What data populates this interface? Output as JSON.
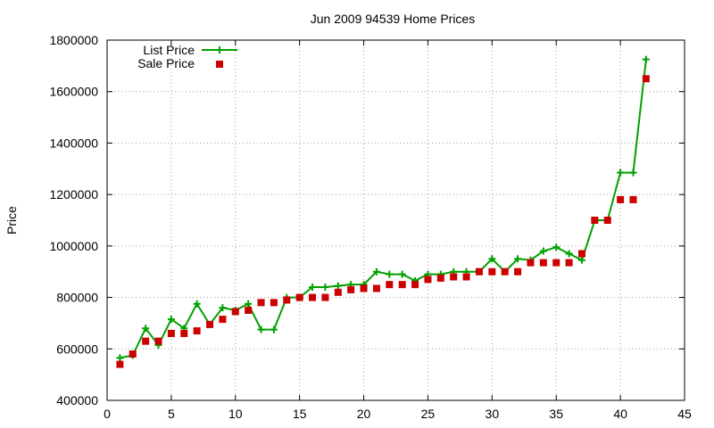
{
  "chart_data": {
    "type": "line",
    "title": "Jun 2009 94539 Home Prices",
    "xlabel": "",
    "ylabel": "Price",
    "xlim": [
      0,
      45
    ],
    "ylim": [
      400000,
      1800000
    ],
    "x_ticks": [
      0,
      5,
      10,
      15,
      20,
      25,
      30,
      35,
      40,
      45
    ],
    "y_ticks": [
      400000,
      600000,
      800000,
      1000000,
      1200000,
      1400000,
      1600000,
      1800000
    ],
    "grid": true,
    "legend_position": "top-left",
    "x": [
      1,
      2,
      3,
      4,
      5,
      6,
      7,
      8,
      9,
      10,
      11,
      12,
      13,
      14,
      15,
      16,
      17,
      18,
      19,
      20,
      21,
      22,
      23,
      24,
      25,
      26,
      27,
      28,
      29,
      30,
      31,
      32,
      33,
      34,
      35,
      36,
      37,
      38,
      39,
      40,
      41,
      42
    ],
    "series": [
      {
        "name": "List Price",
        "style": "line-with-plus",
        "color": "#00a000",
        "values": [
          565000,
          575000,
          680000,
          615000,
          715000,
          680000,
          775000,
          695000,
          760000,
          750000,
          775000,
          675000,
          675000,
          800000,
          800000,
          840000,
          840000,
          845000,
          850000,
          850000,
          900000,
          890000,
          890000,
          865000,
          890000,
          890000,
          900000,
          900000,
          900000,
          950000,
          900000,
          950000,
          945000,
          980000,
          995000,
          970000,
          945000,
          1100000,
          1100000,
          1285000,
          1285000,
          1725000
        ]
      },
      {
        "name": "Sale Price",
        "style": "square-points",
        "color": "#cc0000",
        "values": [
          540000,
          580000,
          630000,
          630000,
          660000,
          660000,
          670000,
          695000,
          715000,
          745000,
          750000,
          780000,
          780000,
          790000,
          800000,
          800000,
          800000,
          820000,
          830000,
          835000,
          835000,
          850000,
          850000,
          850000,
          870000,
          875000,
          880000,
          880000,
          900000,
          900000,
          900000,
          900000,
          935000,
          935000,
          935000,
          935000,
          970000,
          1100000,
          1100000,
          1180000,
          1180000,
          1650000
        ]
      }
    ]
  }
}
